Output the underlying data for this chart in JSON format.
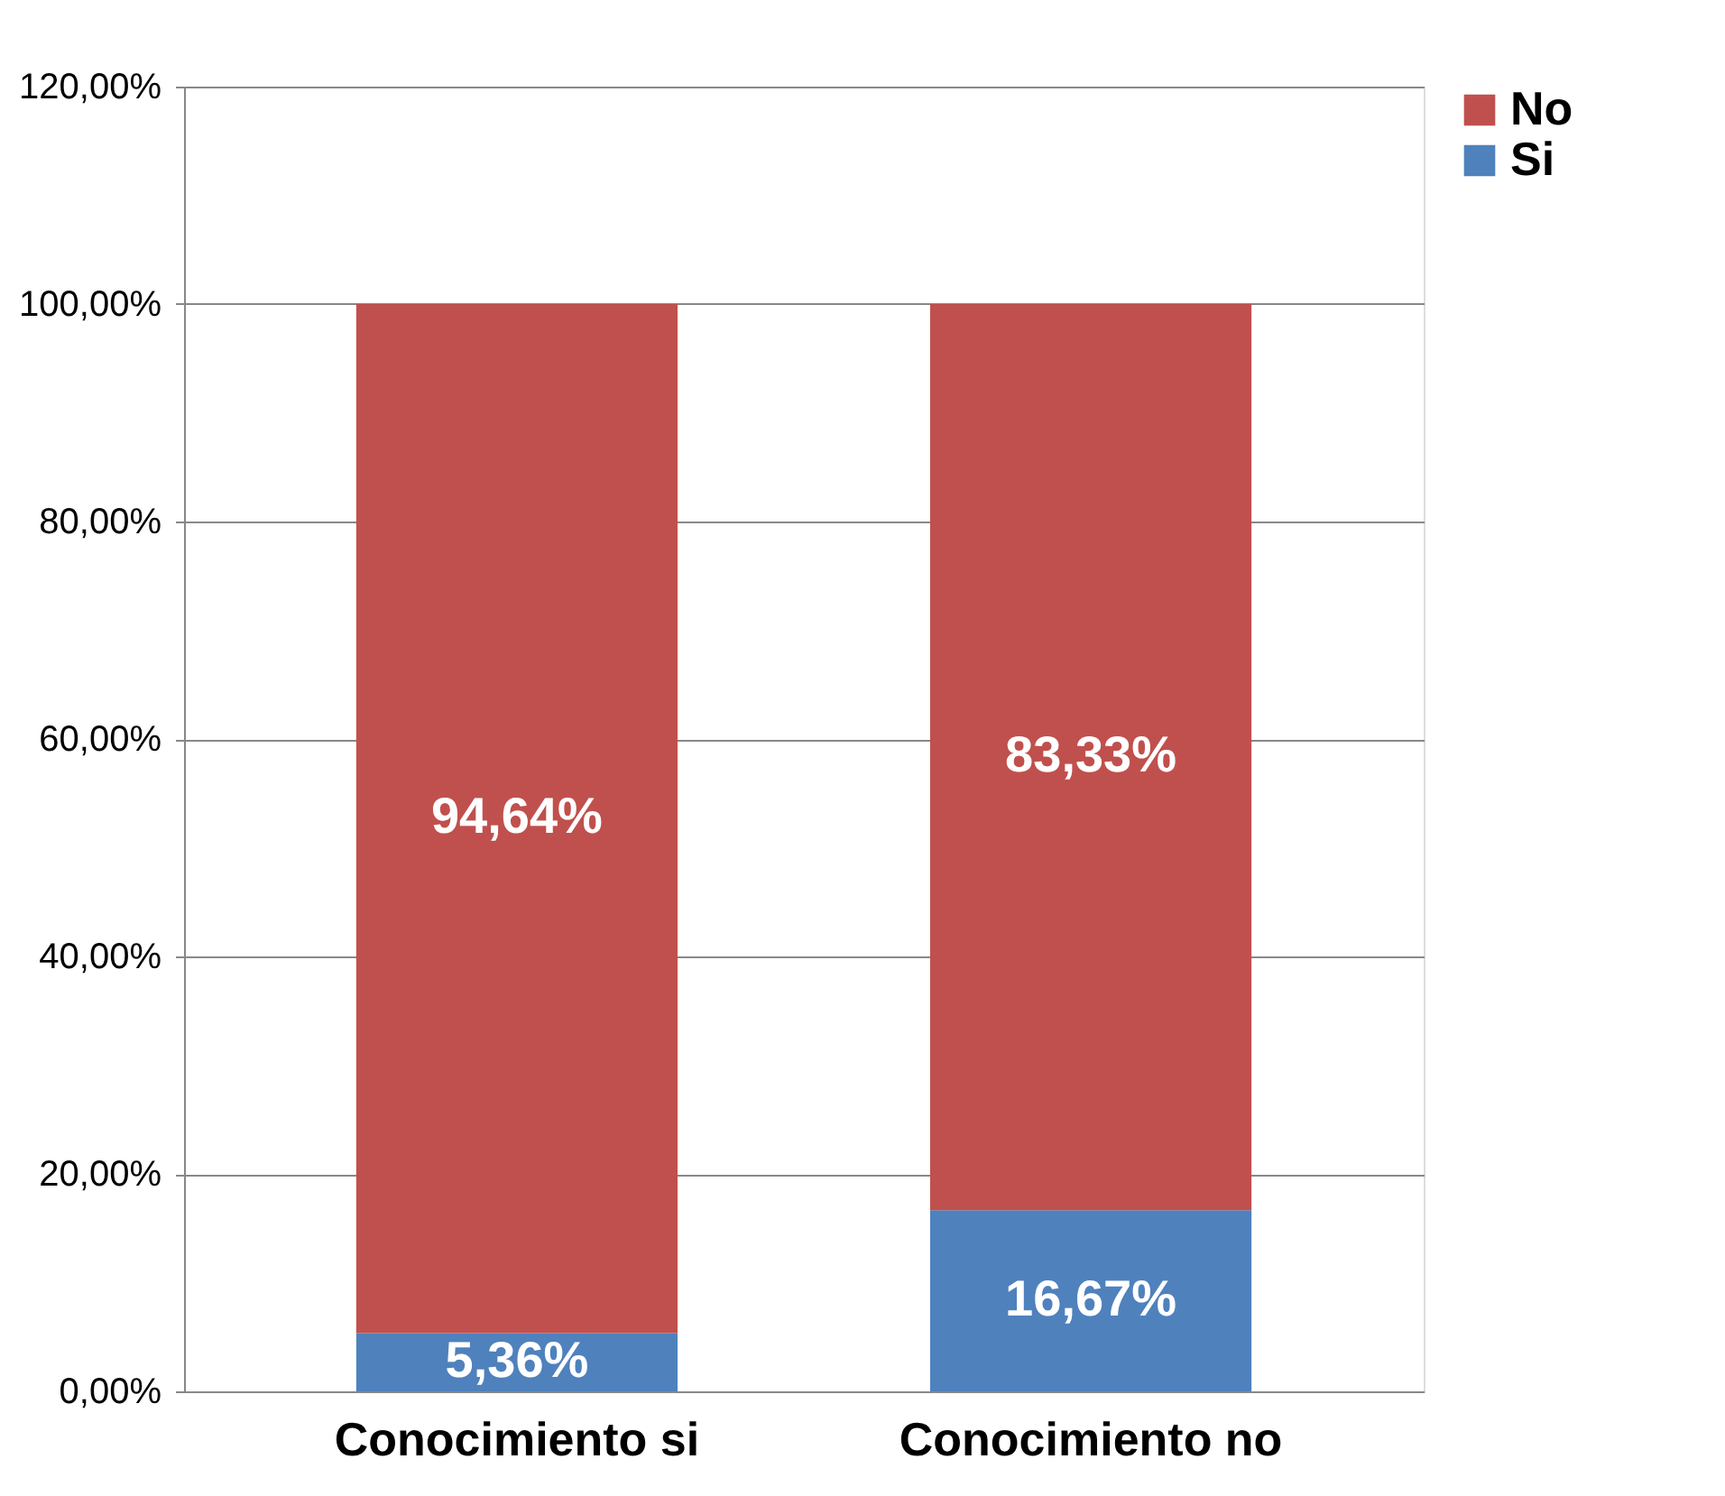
{
  "chart_data": {
    "type": "bar",
    "stacked": true,
    "categories": [
      "Conocimiento si",
      "Conocimiento no"
    ],
    "series": [
      {
        "name": "Si",
        "color": "#4f81bd",
        "values": [
          5.36,
          16.67
        ],
        "value_labels": [
          "5,36%",
          "16,67%"
        ]
      },
      {
        "name": "No",
        "color": "#c0504d",
        "values": [
          94.64,
          83.33
        ],
        "value_labels": [
          "94,64%",
          "83,33%"
        ]
      }
    ],
    "ylim": [
      0,
      120
    ],
    "yticks": [
      {
        "value": 0,
        "label": "0,00%"
      },
      {
        "value": 20,
        "label": "20,00%"
      },
      {
        "value": 40,
        "label": "40,00%"
      },
      {
        "value": 60,
        "label": "60,00%"
      },
      {
        "value": 80,
        "label": "80,00%"
      },
      {
        "value": 100,
        "label": "100,00%"
      },
      {
        "value": 120,
        "label": "120,00%"
      }
    ],
    "grid": "y",
    "legend": "right"
  }
}
